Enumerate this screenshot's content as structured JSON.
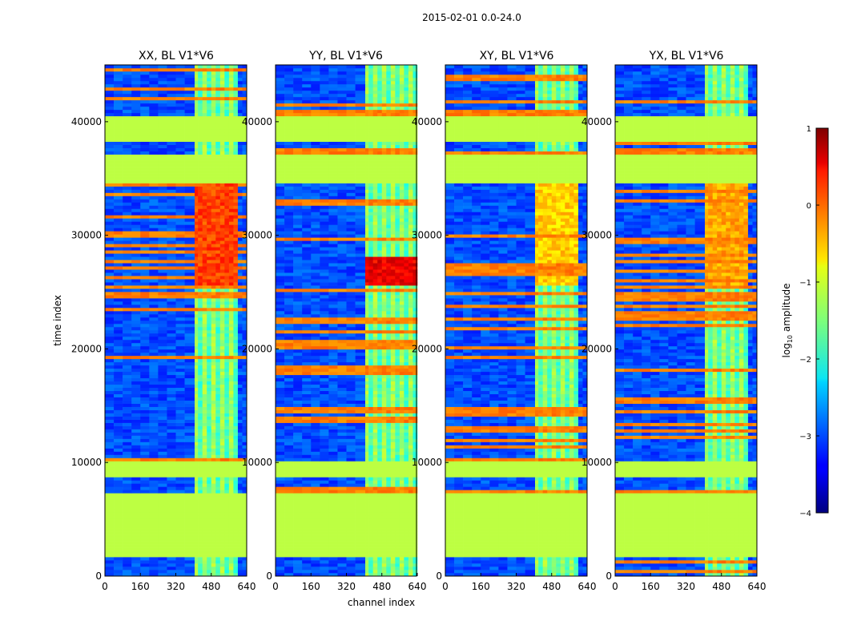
{
  "figure": {
    "suptitle": "2015-02-01 0.0-24.0",
    "xlabel": "channel index",
    "ylabel": "time index"
  },
  "colormap": "jet",
  "chart_data": {
    "type": "heatmap",
    "x_range": [
      0,
      640
    ],
    "y_range": [
      0,
      45000
    ],
    "x_ticks": [
      0,
      160,
      320,
      480,
      640
    ],
    "y_ticks": [
      0,
      10000,
      20000,
      30000,
      40000
    ],
    "color_range": [
      -4,
      1
    ],
    "colorbar": {
      "label_prefix": "log",
      "label_sub": "10",
      "label_suffix": " amplitude",
      "ticks": [
        1,
        0,
        -1,
        -2,
        -3,
        -4
      ],
      "tick_labels": [
        "1",
        "0",
        "−1",
        "−2",
        "−3",
        "−4"
      ]
    },
    "panels": [
      {
        "title": "XX, BL V1*V6",
        "rfi_band": [
          405,
          605
        ],
        "hot_block": [
          25500,
          34500
        ],
        "hot_peak": 0.2
      },
      {
        "title": "YY, BL V1*V6",
        "rfi_band": [
          405,
          640
        ],
        "hot_block": [
          25500,
          28000
        ],
        "hot_peak": 0.6
      },
      {
        "title": "XY, BL V1*V6",
        "rfi_band": [
          405,
          600
        ],
        "hot_block": [
          25500,
          34500
        ],
        "hot_peak": -0.5
      },
      {
        "title": "YX, BL V1*V6",
        "rfi_band": [
          405,
          600
        ],
        "hot_block": [
          25500,
          34500
        ],
        "hot_peak": -0.3
      }
    ],
    "flagged_time_ranges": [
      [
        1800,
        7200
      ],
      [
        8600,
        10000
      ],
      [
        34600,
        37200
      ],
      [
        38300,
        40400
      ]
    ],
    "flag_level": -1.2,
    "background_level": -3.0
  }
}
